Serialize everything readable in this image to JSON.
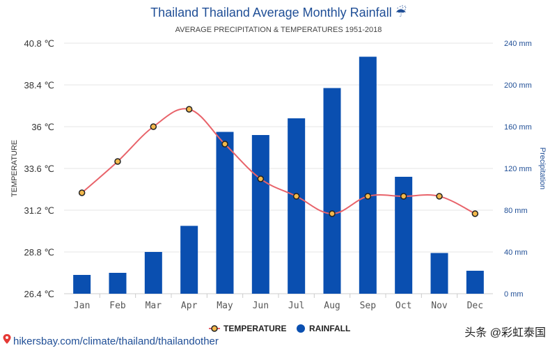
{
  "header": {
    "title": "Thailand Thailand Average Monthly Rainfall ☔",
    "subtitle": "AVERAGE PRECIPITATION & TEMPERATURES 1951-2018"
  },
  "footer": {
    "source": "hikersbay.com/climate/thailand/thailandother",
    "watermark": "头条 @彩虹泰国"
  },
  "colors": {
    "bar": "#0a4fb0",
    "line": "#e8636a",
    "marker_fill": "#f2b84b",
    "marker_stroke": "#222222"
  },
  "chart_data": {
    "type": "bar",
    "title": "Thailand Thailand Average Monthly Rainfall ☔",
    "subtitle": "AVERAGE PRECIPITATION & TEMPERATURES 1951-2018",
    "categories": [
      "Jan",
      "Feb",
      "Mar",
      "Apr",
      "May",
      "Jun",
      "Jul",
      "Aug",
      "Sep",
      "Oct",
      "Nov",
      "Dec"
    ],
    "y_left": {
      "label": "TEMPERATURE",
      "ticks": [
        "40.8 ℃",
        "38.4 ℃",
        "36 ℃",
        "33.6 ℃",
        "31.2 ℃",
        "28.8 ℃",
        "26.4 ℃"
      ],
      "range": [
        26.4,
        40.8
      ]
    },
    "y_right": {
      "label": "Precipitation",
      "ticks": [
        "240 mm",
        "200 mm",
        "160 mm",
        "120 mm",
        "80 mm",
        "40 mm",
        "0 mm"
      ],
      "range": [
        0,
        240
      ]
    },
    "series": [
      {
        "name": "TEMPERATURE",
        "type": "line",
        "axis": "left",
        "values": [
          32.2,
          34.0,
          36.0,
          37.0,
          35.0,
          33.0,
          32.0,
          31.0,
          32.0,
          32.0,
          32.0,
          31.0
        ]
      },
      {
        "name": "RAINFALL",
        "type": "bar",
        "axis": "right",
        "values": [
          18,
          20,
          40,
          65,
          155,
          152,
          168,
          197,
          227,
          112,
          39,
          22
        ]
      }
    ],
    "legend": {
      "placement": "bottom-center",
      "items": [
        "TEMPERATURE",
        "RAINFALL"
      ]
    },
    "grid": true
  }
}
